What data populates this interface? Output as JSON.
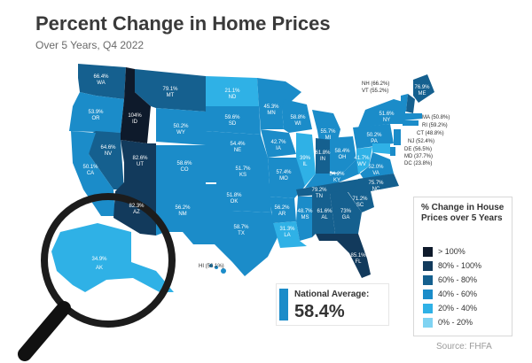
{
  "title": "Percent Change in Home Prices",
  "subtitle": "Over 5 Years, Q4 2022",
  "states": [
    {
      "abbr": "WA",
      "value": "66.4%"
    },
    {
      "abbr": "OR",
      "value": "53.9%"
    },
    {
      "abbr": "ID",
      "value": "104%"
    },
    {
      "abbr": "MT",
      "value": "79.1%"
    },
    {
      "abbr": "ND",
      "value": "21.1%"
    },
    {
      "abbr": "MN",
      "value": "45.3%"
    },
    {
      "abbr": "WI",
      "value": "58.8%"
    },
    {
      "abbr": "MI",
      "value": "55.7%"
    },
    {
      "abbr": "ME",
      "value": "76.9%"
    },
    {
      "abbr": "NY",
      "value": "51.6%"
    },
    {
      "abbr": "WY",
      "value": "50.2%"
    },
    {
      "abbr": "SD",
      "value": "59.6%"
    },
    {
      "abbr": "NV",
      "value": "64.6%"
    },
    {
      "abbr": "UT",
      "value": "82.6%"
    },
    {
      "abbr": "CO",
      "value": "58.6%"
    },
    {
      "abbr": "NE",
      "value": "54.4%"
    },
    {
      "abbr": "IA",
      "value": "42.7%"
    },
    {
      "abbr": "IL",
      "value": "39%"
    },
    {
      "abbr": "IN",
      "value": "61.8%"
    },
    {
      "abbr": "OH",
      "value": "58.4%"
    },
    {
      "abbr": "PA",
      "value": "50.2%"
    },
    {
      "abbr": "CA",
      "value": "50.1%"
    },
    {
      "abbr": "KS",
      "value": "51.7%"
    },
    {
      "abbr": "MO",
      "value": "57.4%"
    },
    {
      "abbr": "KY",
      "value": "54.2%"
    },
    {
      "abbr": "WV",
      "value": "41.7%"
    },
    {
      "abbr": "VA",
      "value": "52.0%"
    },
    {
      "abbr": "AZ",
      "value": "82.3%"
    },
    {
      "abbr": "NM",
      "value": "56.2%"
    },
    {
      "abbr": "OK",
      "value": "51.8%"
    },
    {
      "abbr": "AR",
      "value": "56.2%"
    },
    {
      "abbr": "TN",
      "value": "79.2%"
    },
    {
      "abbr": "NC",
      "value": "75.7%"
    },
    {
      "abbr": "SC",
      "value": "71.2%"
    },
    {
      "abbr": "MS",
      "value": "48.7%"
    },
    {
      "abbr": "AL",
      "value": "61.6%"
    },
    {
      "abbr": "GA",
      "value": "73%"
    },
    {
      "abbr": "TX",
      "value": "58.7%"
    },
    {
      "abbr": "LA",
      "value": "31.3%"
    },
    {
      "abbr": "FL",
      "value": "85.1%"
    },
    {
      "abbr": "HI",
      "value": "56.1%"
    },
    {
      "abbr": "AK",
      "value": "34.9%"
    },
    {
      "abbr": "NH",
      "value": "66.2%"
    },
    {
      "abbr": "VT",
      "value": "55.2%"
    },
    {
      "abbr": "MA",
      "value": "50.8%"
    },
    {
      "abbr": "RI",
      "value": "59.2%"
    },
    {
      "abbr": "CT",
      "value": "48.8%"
    },
    {
      "abbr": "NJ",
      "value": "52.4%"
    },
    {
      "abbr": "DE",
      "value": "56.5%"
    },
    {
      "abbr": "MD",
      "value": "37.7%"
    },
    {
      "abbr": "DC",
      "value": "23.8%"
    }
  ],
  "small_states": {
    "nh_vt": [
      "NH (66.2%)",
      "VT (55.2%)"
    ],
    "northeast": [
      "MA (50.8%)",
      "RI (59.2%)",
      "CT (48.8%)",
      "NJ (52.4%)",
      "DE (56.5%)",
      "MD (37.7%)",
      "DC (23.8%)"
    ],
    "hi": "HI (56.1%)"
  },
  "legend": {
    "title": "% Change in House Prices over 5 Years",
    "items": [
      {
        "label": "> 100%",
        "color": "#0e1a2b"
      },
      {
        "label": "80% - 100%",
        "color": "#123a5c"
      },
      {
        "label": "60% - 80%",
        "color": "#15608f"
      },
      {
        "label": "40% - 60%",
        "color": "#1b8cc9"
      },
      {
        "label": "20% - 40%",
        "color": "#2fb1e6"
      },
      {
        "label": "0% - 20%",
        "color": "#7fd3f2"
      }
    ]
  },
  "national": {
    "label": "National Average:",
    "value": "58.4%"
  },
  "source": "Source: FHFA"
}
